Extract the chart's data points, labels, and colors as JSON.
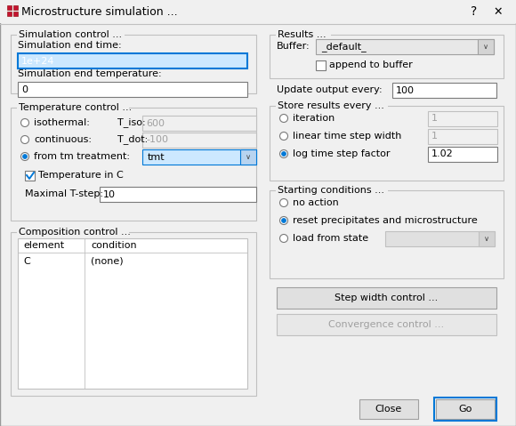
{
  "title_bar_text": "Microstructure simulation ...",
  "bg_color": "#f0f0f0",
  "selected_field_color": "#cce8ff",
  "selected_field_border": "#0078d7",
  "fields": {
    "sim_end_time_label": "Simulation end time:",
    "sim_end_time_value": "1e+24",
    "sim_end_temp_label": "Simulation end temperature:",
    "sim_end_temp_value": "0",
    "isothermal_label": "isothermal:",
    "t_iso_label": "T_iso:",
    "t_iso_value": "600",
    "continuous_label": "continuous:",
    "t_dot_label": "T_dot:",
    "t_dot_value": "-100",
    "from_tm_label": "from tm treatment:",
    "from_tm_value": "tmt",
    "temp_in_c_label": "Temperature in C",
    "maximal_t_step_label": "Maximal T-step:",
    "maximal_t_step_value": "10",
    "buffer_label": "Buffer:",
    "buffer_value": "_default_",
    "append_buffer_label": "append to buffer",
    "update_output_label": "Update output every:",
    "update_output_value": "100",
    "iteration_label": "iteration",
    "iteration_value": "1",
    "linear_ts_label": "linear time step width",
    "linear_ts_value": "1",
    "log_ts_label": "log time step factor",
    "log_ts_value": "1.02",
    "no_action_label": "no action",
    "reset_label": "reset precipitates and microstructure",
    "load_state_label": "load from state",
    "step_width_btn": "Step width control ...",
    "convergence_btn": "Convergence control ...",
    "close_btn": "Close",
    "go_btn": "Go"
  }
}
